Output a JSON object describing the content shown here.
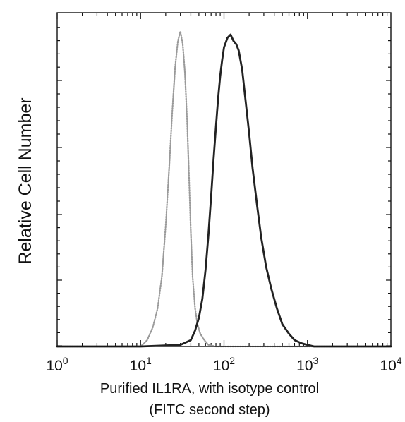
{
  "chart_data": {
    "type": "line",
    "title": "",
    "ylabel": "Relative Cell Number",
    "xlabel_lines": [
      "Purified IL1RA, with isotype control",
      "(FITC second step)"
    ],
    "x_scale": "log",
    "xlim": [
      1,
      10000
    ],
    "ylim": [
      0,
      1.0
    ],
    "x_ticks": [
      {
        "base": "10",
        "exp": "0",
        "value": 1
      },
      {
        "base": "10",
        "exp": "1",
        "value": 10
      },
      {
        "base": "10",
        "exp": "2",
        "value": 100
      },
      {
        "base": "10",
        "exp": "3",
        "value": 1000
      },
      {
        "base": "10",
        "exp": "4",
        "value": 10000
      }
    ],
    "grid": false,
    "legend": "none",
    "series": [
      {
        "color": "#9a9a9a",
        "line": "dotted",
        "x": [
          1,
          5,
          10,
          12,
          14,
          16,
          18,
          20,
          22,
          24,
          26,
          28,
          30,
          32,
          34,
          36,
          38,
          40,
          42,
          45,
          48,
          52,
          58,
          65,
          80,
          200,
          1000,
          10000
        ],
        "y": [
          0.0,
          0.0,
          0.0,
          0.02,
          0.06,
          0.12,
          0.22,
          0.38,
          0.56,
          0.74,
          0.88,
          0.96,
          0.99,
          0.95,
          0.86,
          0.72,
          0.54,
          0.36,
          0.22,
          0.12,
          0.07,
          0.04,
          0.02,
          0.005,
          0.0,
          0.0,
          0.0,
          0.0
        ]
      },
      {
        "color": "#222222",
        "line": "solid",
        "x": [
          1,
          10,
          30,
          40,
          45,
          50,
          55,
          60,
          65,
          70,
          75,
          80,
          85,
          90,
          95,
          100,
          110,
          120,
          130,
          140,
          150,
          165,
          180,
          200,
          220,
          250,
          280,
          320,
          370,
          430,
          500,
          600,
          700,
          850,
          1000,
          1200,
          2000,
          5000,
          10000
        ],
        "y": [
          0.0,
          0.0,
          0.005,
          0.02,
          0.05,
          0.09,
          0.15,
          0.24,
          0.35,
          0.47,
          0.59,
          0.69,
          0.78,
          0.85,
          0.9,
          0.94,
          0.97,
          0.98,
          0.96,
          0.95,
          0.93,
          0.87,
          0.78,
          0.67,
          0.56,
          0.44,
          0.34,
          0.25,
          0.18,
          0.12,
          0.07,
          0.04,
          0.02,
          0.01,
          0.005,
          0.0,
          0.0,
          0.0,
          0.0
        ]
      }
    ]
  }
}
